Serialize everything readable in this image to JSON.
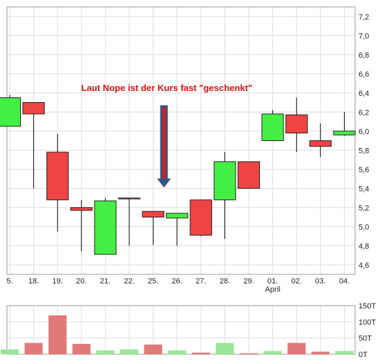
{
  "chart_data": [
    {
      "type": "candlestick",
      "title": "",
      "annotation": "Laut Nope ist der Kurs fast \"geschenkt\"",
      "categories": [
        "5.",
        "18.",
        "19.",
        "20.",
        "21.",
        "22.",
        "25.",
        "26.",
        "27.",
        "28.",
        "29.",
        "01.",
        "02.",
        "03.",
        "04."
      ],
      "month_label": "April",
      "ylim": [
        4.5,
        7.3
      ],
      "yticks": [
        "4,6",
        "4,8",
        "5,0",
        "5,2",
        "5,4",
        "5,6",
        "5,8",
        "6,0",
        "6,2",
        "6,4",
        "6,6",
        "6,8",
        "7,0",
        "7,2"
      ],
      "grid": true,
      "candles": [
        {
          "open": 6.05,
          "close": 6.35,
          "high": 6.38,
          "low": 6.05
        },
        {
          "open": 6.3,
          "close": 6.18,
          "high": 6.3,
          "low": 5.4
        },
        {
          "open": 5.78,
          "close": 5.28,
          "high": 5.97,
          "low": 4.95
        },
        {
          "open": 5.2,
          "close": 5.17,
          "high": 5.28,
          "low": 4.74
        },
        {
          "open": 4.71,
          "close": 5.27,
          "high": 5.3,
          "low": 4.71
        },
        {
          "open": 5.3,
          "close": 5.29,
          "high": 5.3,
          "low": 4.8
        },
        {
          "open": 5.16,
          "close": 5.1,
          "high": 5.16,
          "low": 4.81
        },
        {
          "open": 5.09,
          "close": 5.14,
          "high": 5.14,
          "low": 4.8
        },
        {
          "open": 5.28,
          "close": 4.91,
          "high": 5.28,
          "low": 4.9
        },
        {
          "open": 5.28,
          "close": 5.68,
          "high": 5.78,
          "low": 4.87
        },
        {
          "open": 5.68,
          "close": 5.4,
          "high": 5.68,
          "low": 5.4
        },
        {
          "open": 5.9,
          "close": 6.18,
          "high": 6.22,
          "low": 5.9
        },
        {
          "open": 6.17,
          "close": 5.98,
          "high": 6.35,
          "low": 5.78
        },
        {
          "open": 5.9,
          "close": 5.84,
          "high": 6.08,
          "low": 5.73
        },
        {
          "open": 5.96,
          "close": 6.0,
          "high": 6.2,
          "low": 5.95
        }
      ]
    },
    {
      "type": "bar",
      "title": "",
      "ylim": [
        0,
        150
      ],
      "yticks": [
        "0T",
        "50T",
        "100T",
        "150T"
      ],
      "values": [
        15,
        35,
        120,
        32,
        12,
        15,
        30,
        12,
        5,
        35,
        3,
        10,
        35,
        8,
        10
      ],
      "colors": [
        "#99e699",
        "#e07a7a",
        "#e07a7a",
        "#e07a7a",
        "#99e699",
        "#99e699",
        "#e07a7a",
        "#99e699",
        "#e07a7a",
        "#99e699",
        "#e07a7a",
        "#99e699",
        "#e07a7a",
        "#e07a7a",
        "#99e699"
      ]
    }
  ],
  "colors": {
    "up": "#44ee44",
    "down": "#ee4444",
    "annotation": "#dd1111",
    "arrow": "#3a5580",
    "grid": "#dddddd",
    "axis": "#999999"
  }
}
